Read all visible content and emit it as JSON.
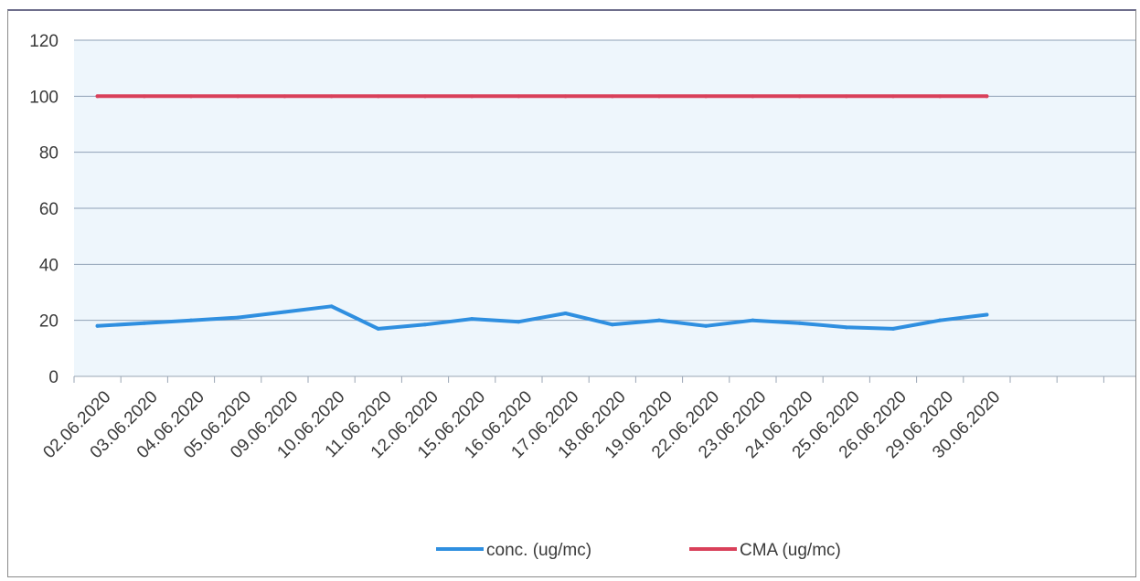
{
  "chart_data": {
    "type": "line",
    "title": "",
    "xlabel": "",
    "ylabel": "",
    "ylim": [
      0,
      120
    ],
    "yticks": [
      "0",
      "20",
      "40",
      "60",
      "80",
      "100",
      "120"
    ],
    "grid": true,
    "legend_position": "bottom",
    "categories": [
      "02.06.2020",
      "03.06.2020",
      "04.06.2020",
      "05.06.2020",
      "09.06.2020",
      "10.06.2020",
      "11.06.2020",
      "12.06.2020",
      "15.06.2020",
      "16.06.2020",
      "17.06.2020",
      "18.06.2020",
      "19.06.2020",
      "22.06.2020",
      "23.06.2020",
      "24.06.2020",
      "25.06.2020",
      "26.06.2020",
      "29.06.2020",
      "30.06.2020"
    ],
    "series": [
      {
        "name": "conc. (ug/mc)",
        "color": "#2f8fe0",
        "values": [
          18,
          19,
          20,
          21,
          23,
          25,
          17,
          18.5,
          20.5,
          19.5,
          22.5,
          18.5,
          20,
          18,
          20,
          19,
          17.5,
          17,
          20,
          22
        ]
      },
      {
        "name": "CMA (ug/mc)",
        "color": "#d9405a",
        "values": [
          100,
          100,
          100,
          100,
          100,
          100,
          100,
          100,
          100,
          100,
          100,
          100,
          100,
          100,
          100,
          100,
          100,
          100,
          100,
          100
        ]
      }
    ]
  }
}
